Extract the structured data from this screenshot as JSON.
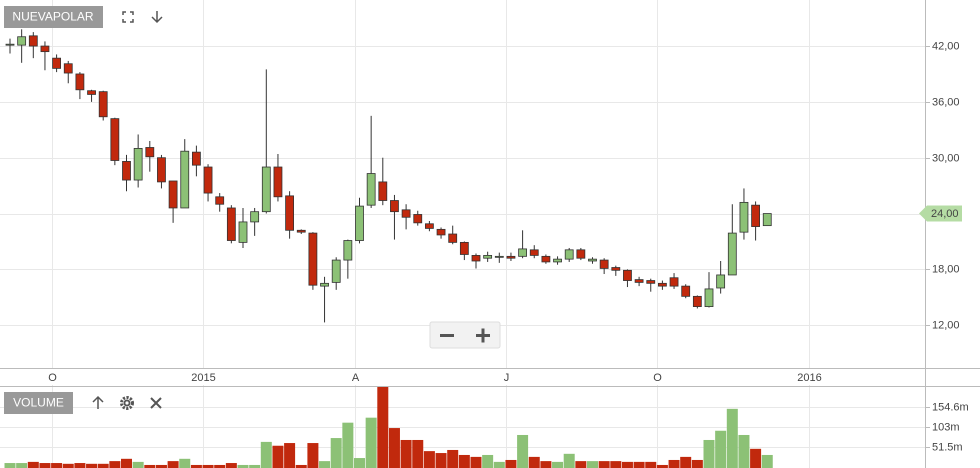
{
  "chart_data": {
    "type": "candlestick",
    "symbol": "NUEVAPOLAR",
    "volume_title": "VOLUME",
    "categories": [
      null,
      null,
      null,
      null,
      "O",
      null,
      null,
      null,
      null,
      null,
      null,
      null,
      null,
      null,
      null,
      null,
      null,
      "2015",
      null,
      null,
      null,
      null,
      null,
      null,
      null,
      null,
      null,
      null,
      null,
      null,
      "A",
      null,
      null,
      null,
      null,
      null,
      null,
      null,
      null,
      null,
      null,
      null,
      null,
      "J",
      null,
      null,
      null,
      null,
      null,
      null,
      null,
      null,
      null,
      null,
      null,
      null,
      "O",
      null,
      null,
      null,
      null,
      null,
      null,
      null,
      null,
      null,
      null,
      null,
      null,
      "2016"
    ],
    "open": [
      42.1,
      42.1,
      43.1,
      42.0,
      40.7,
      40.1,
      39.0,
      37.2,
      37.1,
      34.2,
      29.6,
      27.6,
      31.1,
      30.0,
      27.5,
      24.6,
      30.6,
      29.0,
      25.8,
      24.6,
      20.9,
      23.1,
      24.2,
      29.0,
      25.9,
      22.2,
      21.9,
      16.2,
      16.6,
      19.0,
      21.1,
      24.9,
      27.4,
      25.4,
      24.4,
      23.9,
      22.9,
      22.3,
      21.8,
      20.9,
      19.5,
      19.2,
      19.3,
      19.4,
      19.4,
      20.1,
      19.4,
      18.8,
      19.1,
      20.1,
      18.9,
      19.0,
      18.2,
      17.9,
      16.9,
      16.8,
      16.5,
      17.1,
      16.2,
      15.1,
      14.0,
      16.0,
      17.4,
      22.0,
      24.9,
      22.7,
      null,
      null,
      null,
      null
    ],
    "high": [
      42.8,
      43.8,
      43.5,
      42.5,
      41.1,
      40.4,
      39.2,
      37.3,
      37.2,
      34.3,
      30.3,
      32.5,
      31.8,
      30.3,
      27.5,
      32.0,
      31.3,
      29.3,
      26.2,
      24.9,
      24.6,
      24.6,
      39.5,
      30.4,
      26.4,
      22.3,
      22.0,
      17.2,
      19.3,
      21.2,
      25.7,
      34.5,
      30.0,
      26.0,
      25.0,
      24.3,
      23.2,
      22.5,
      22.7,
      21.0,
      19.7,
      19.9,
      19.8,
      19.8,
      22.2,
      20.6,
      19.6,
      19.4,
      20.3,
      20.3,
      19.3,
      19.2,
      18.4,
      18.0,
      17.2,
      17.0,
      16.8,
      17.6,
      16.4,
      15.2,
      17.7,
      18.9,
      25.0,
      26.7,
      25.3,
      24.0,
      null,
      null,
      null,
      null
    ],
    "low": [
      41.2,
      40.2,
      40.7,
      39.4,
      39.2,
      38.0,
      36.3,
      36.0,
      34.0,
      29.2,
      26.4,
      26.8,
      28.5,
      26.7,
      23.0,
      24.6,
      28.0,
      25.3,
      24.2,
      20.8,
      20.3,
      21.6,
      24.0,
      25.3,
      21.3,
      21.8,
      15.8,
      12.3,
      15.8,
      17.0,
      20.8,
      24.6,
      24.9,
      21.2,
      22.3,
      22.7,
      22.1,
      21.3,
      20.7,
      19.0,
      18.1,
      18.8,
      18.7,
      18.9,
      19.2,
      19.2,
      18.6,
      18.5,
      18.8,
      19.0,
      18.6,
      17.5,
      17.3,
      16.1,
      16.2,
      15.6,
      15.8,
      15.9,
      14.9,
      13.8,
      13.9,
      15.4,
      17.4,
      21.2,
      21.1,
      22.7,
      null,
      null,
      null,
      null
    ],
    "close": [
      42.2,
      43.0,
      42.0,
      41.4,
      39.6,
      39.1,
      37.3,
      36.8,
      34.4,
      29.7,
      27.6,
      31.0,
      30.1,
      27.4,
      24.6,
      30.7,
      29.2,
      26.2,
      25.0,
      21.1,
      23.1,
      24.2,
      29.0,
      25.8,
      22.2,
      22.0,
      16.3,
      16.5,
      19.0,
      21.1,
      24.8,
      28.3,
      25.4,
      24.2,
      23.6,
      23.0,
      22.4,
      21.7,
      20.9,
      19.6,
      18.9,
      19.5,
      19.4,
      19.2,
      20.2,
      19.5,
      18.8,
      19.1,
      20.1,
      19.2,
      19.1,
      18.1,
      17.9,
      16.8,
      16.6,
      16.5,
      16.2,
      16.2,
      15.1,
      14.0,
      15.9,
      17.4,
      21.9,
      25.2,
      22.6,
      24.0,
      null,
      null,
      null,
      null
    ],
    "volume": [
      9,
      9,
      12,
      9,
      9,
      7,
      9,
      7,
      7,
      14,
      20,
      12,
      4,
      4,
      14,
      20,
      4,
      4,
      4,
      9,
      4,
      4,
      64,
      54,
      61,
      4,
      61,
      14,
      74,
      114,
      22,
      127,
      208,
      100,
      69,
      69,
      40,
      35,
      43,
      30,
      25,
      30,
      12,
      17,
      82,
      25,
      14,
      12,
      33,
      14,
      14,
      14,
      14,
      12,
      12,
      12,
      4,
      17,
      25,
      17,
      69,
      93,
      150,
      82,
      46,
      30,
      null,
      null,
      null,
      null
    ],
    "up_color": "#8cc176",
    "down_color": "#c1290d",
    "ylim": [
      7.4,
      46.95
    ],
    "yticks": [
      {
        "value": 12,
        "label": "12,00"
      },
      {
        "value": 18,
        "label": "18,00"
      },
      {
        "value": 24,
        "label": "24,00"
      },
      {
        "value": 30,
        "label": "30,00"
      },
      {
        "value": 36,
        "label": "36,00"
      },
      {
        "value": 42,
        "label": "42,00"
      }
    ],
    "volume_ylim": [
      0,
      212
    ],
    "volume_yticks": [
      {
        "value": 51.5,
        "label": "51.5m"
      },
      {
        "value": 103,
        "label": "103m"
      },
      {
        "value": 154.6,
        "label": "154.6m"
      }
    ],
    "last_price": {
      "value": 24,
      "label": "24,00"
    },
    "grid": true
  }
}
